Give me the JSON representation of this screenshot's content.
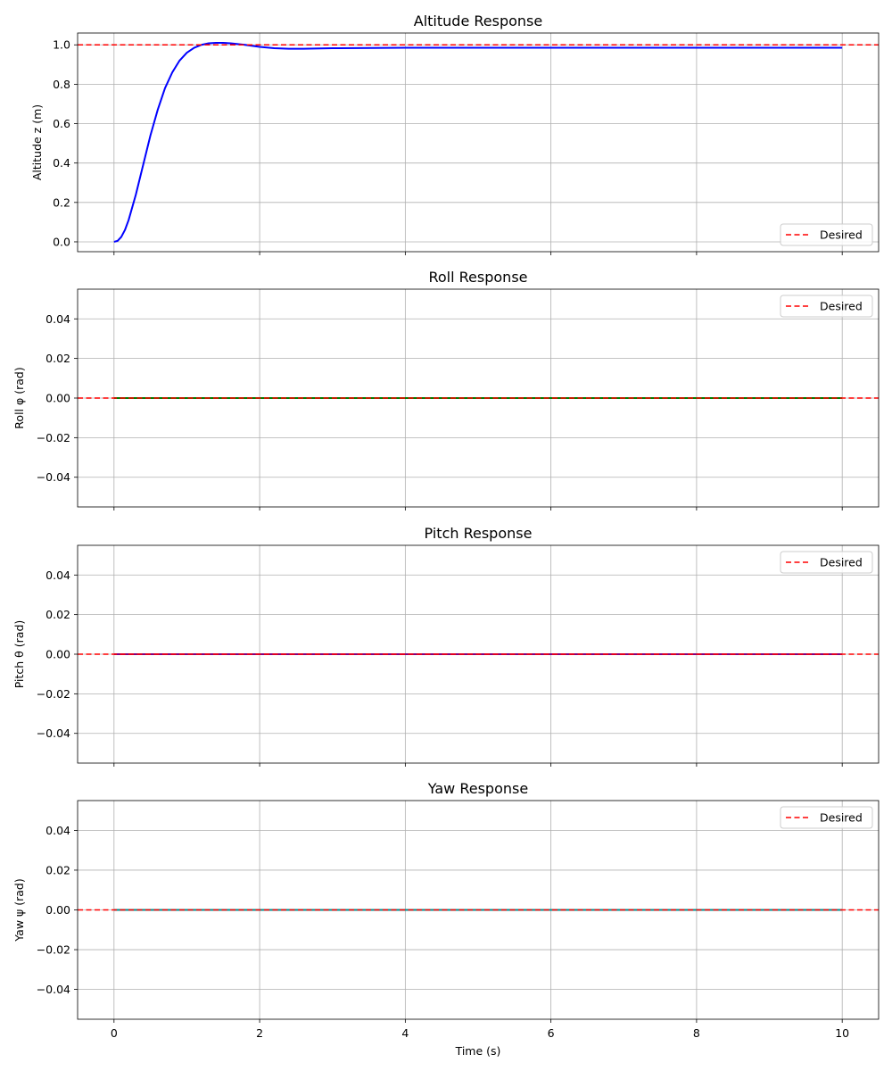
{
  "chart_data": [
    {
      "type": "line",
      "title": "Altitude Response",
      "xlabel": "",
      "ylabel": "Altitude z (m)",
      "xlim": [
        -0.5,
        10.5
      ],
      "ylim": [
        -0.05,
        1.06
      ],
      "xticks": [
        0,
        2,
        4,
        6,
        8,
        10
      ],
      "xtick_labels_visible": false,
      "yticks": [
        0.0,
        0.2,
        0.4,
        0.6,
        0.8,
        1.0
      ],
      "ytick_labels": [
        "0.0",
        "0.2",
        "0.4",
        "0.6",
        "0.8",
        "1.0"
      ],
      "grid": true,
      "legend_position": "lower-right",
      "series": [
        {
          "style": "solid",
          "color": "#0000ff",
          "x": [
            0,
            0.05,
            0.1,
            0.15,
            0.2,
            0.3,
            0.4,
            0.5,
            0.6,
            0.7,
            0.8,
            0.9,
            1.0,
            1.1,
            1.2,
            1.3,
            1.4,
            1.5,
            1.6,
            1.8,
            2.0,
            2.2,
            2.4,
            2.6,
            3.0,
            4.0,
            5.0,
            6.0,
            8.0,
            10.0
          ],
          "y": [
            0,
            0.005,
            0.025,
            0.06,
            0.11,
            0.24,
            0.39,
            0.54,
            0.67,
            0.78,
            0.86,
            0.92,
            0.96,
            0.985,
            1.0,
            1.008,
            1.01,
            1.01,
            1.008,
            1.0,
            0.99,
            0.983,
            0.98,
            0.98,
            0.983,
            0.985,
            0.985,
            0.985,
            0.985,
            0.985
          ]
        },
        {
          "name": "Desired",
          "style": "dashed",
          "color": "#ff0000",
          "constant": 1.0
        }
      ]
    },
    {
      "type": "line",
      "title": "Roll Response",
      "xlabel": "",
      "ylabel": "Roll φ (rad)",
      "xlim": [
        -0.5,
        10.5
      ],
      "ylim": [
        -0.055,
        0.055
      ],
      "xticks": [
        0,
        2,
        4,
        6,
        8,
        10
      ],
      "xtick_labels_visible": false,
      "yticks": [
        -0.04,
        -0.02,
        0.0,
        0.02,
        0.04
      ],
      "ytick_labels": [
        "−0.04",
        "−0.02",
        "0.00",
        "0.02",
        "0.04"
      ],
      "grid": true,
      "legend_position": "upper-right",
      "series": [
        {
          "style": "solid",
          "color": "#008000",
          "x": [
            0,
            10
          ],
          "y": [
            0,
            0
          ]
        },
        {
          "name": "Desired",
          "style": "dashed",
          "color": "#ff0000",
          "constant": 0.0
        }
      ]
    },
    {
      "type": "line",
      "title": "Pitch Response",
      "xlabel": "",
      "ylabel": "Pitch θ (rad)",
      "xlim": [
        -0.5,
        10.5
      ],
      "ylim": [
        -0.055,
        0.055
      ],
      "xticks": [
        0,
        2,
        4,
        6,
        8,
        10
      ],
      "xtick_labels_visible": false,
      "yticks": [
        -0.04,
        -0.02,
        0.0,
        0.02,
        0.04
      ],
      "ytick_labels": [
        "−0.04",
        "−0.02",
        "0.00",
        "0.02",
        "0.04"
      ],
      "grid": true,
      "legend_position": "upper-right",
      "series": [
        {
          "style": "solid",
          "color": "#800080",
          "x": [
            0,
            10
          ],
          "y": [
            0,
            0
          ]
        },
        {
          "name": "Desired",
          "style": "dashed",
          "color": "#ff0000",
          "constant": 0.0
        }
      ]
    },
    {
      "type": "line",
      "title": "Yaw Response",
      "xlabel": "Time (s)",
      "ylabel": "Yaw ψ (rad)",
      "xlim": [
        -0.5,
        10.5
      ],
      "ylim": [
        -0.055,
        0.055
      ],
      "xticks": [
        0,
        2,
        4,
        6,
        8,
        10
      ],
      "xtick_labels_visible": true,
      "xtick_labels": [
        "0",
        "2",
        "4",
        "6",
        "8",
        "10"
      ],
      "yticks": [
        -0.04,
        -0.02,
        0.0,
        0.02,
        0.04
      ],
      "ytick_labels": [
        "−0.04",
        "−0.02",
        "0.00",
        "0.02",
        "0.04"
      ],
      "grid": true,
      "legend_position": "upper-right",
      "series": [
        {
          "style": "solid",
          "color": "#008b8b",
          "x": [
            0,
            10
          ],
          "y": [
            0,
            0
          ]
        },
        {
          "name": "Desired",
          "style": "dashed",
          "color": "#ff0000",
          "constant": 0.0
        }
      ]
    }
  ]
}
